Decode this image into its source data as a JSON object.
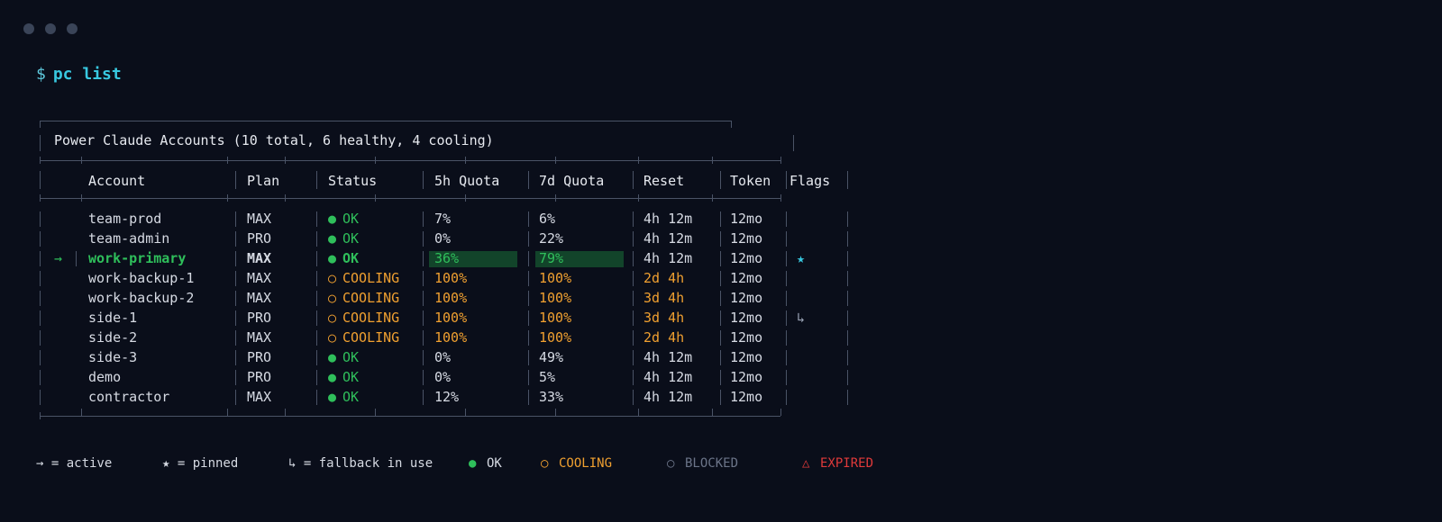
{
  "window": {
    "controls": [
      "close",
      "minimize",
      "maximize"
    ]
  },
  "prompt": {
    "sign": "$",
    "command": "pc list"
  },
  "table": {
    "title": "Power Claude Accounts (10 total, 6 healthy, 4 cooling)",
    "headers": {
      "account": "Account",
      "plan": "Plan",
      "status": "Status",
      "q5h": "5h Quota",
      "q7d": "7d Quota",
      "reset": "Reset",
      "token": "Token",
      "flags": "Flags"
    },
    "rows": [
      {
        "marker": "",
        "account": "team-prod",
        "plan": "MAX",
        "status_icon": "●",
        "status": "OK",
        "q5h": "7%",
        "q7d": "6%",
        "reset": "4h 12m",
        "token": "12mo",
        "flag": ""
      },
      {
        "marker": "",
        "account": "team-admin",
        "plan": "PRO",
        "status_icon": "●",
        "status": "OK",
        "q5h": "0%",
        "q7d": "22%",
        "reset": "4h 12m",
        "token": "12mo",
        "flag": ""
      },
      {
        "marker": "→",
        "account": "work-primary",
        "plan": "MAX",
        "status_icon": "●",
        "status": "OK",
        "q5h": "36%",
        "q7d": "79%",
        "reset": "4h 12m",
        "token": "12mo",
        "flag": "★"
      },
      {
        "marker": "",
        "account": "work-backup-1",
        "plan": "MAX",
        "status_icon": "○",
        "status": "COOLING",
        "q5h": "100%",
        "q7d": "100%",
        "reset": "2d 4h",
        "token": "12mo",
        "flag": ""
      },
      {
        "marker": "",
        "account": "work-backup-2",
        "plan": "MAX",
        "status_icon": "○",
        "status": "COOLING",
        "q5h": "100%",
        "q7d": "100%",
        "reset": "3d 4h",
        "token": "12mo",
        "flag": ""
      },
      {
        "marker": "",
        "account": "side-1",
        "plan": "PRO",
        "status_icon": "○",
        "status": "COOLING",
        "q5h": "100%",
        "q7d": "100%",
        "reset": "3d 4h",
        "token": "12mo",
        "flag": "↳"
      },
      {
        "marker": "",
        "account": "side-2",
        "plan": "MAX",
        "status_icon": "○",
        "status": "COOLING",
        "q5h": "100%",
        "q7d": "100%",
        "reset": "2d 4h",
        "token": "12mo",
        "flag": ""
      },
      {
        "marker": "",
        "account": "side-3",
        "plan": "PRO",
        "status_icon": "●",
        "status": "OK",
        "q5h": "0%",
        "q7d": "49%",
        "reset": "4h 12m",
        "token": "12mo",
        "flag": ""
      },
      {
        "marker": "",
        "account": "demo",
        "plan": "PRO",
        "status_icon": "●",
        "status": "OK",
        "q5h": "0%",
        "q7d": "5%",
        "reset": "4h 12m",
        "token": "12mo",
        "flag": ""
      },
      {
        "marker": "",
        "account": "contractor",
        "plan": "MAX",
        "status_icon": "●",
        "status": "OK",
        "q5h": "12%",
        "q7d": "33%",
        "reset": "4h 12m",
        "token": "12mo",
        "flag": ""
      }
    ],
    "active_bars": {
      "q5h_fraction": 0.36,
      "q7d_fraction": 0.79
    }
  },
  "legend": {
    "active": "→ = active",
    "pinned": "★ = pinned",
    "fallback": "↳ = fallback in use",
    "ok_icon": "●",
    "ok": "OK",
    "cooling_icon": "○",
    "cooling": "COOLING",
    "blocked_icon": "○",
    "blocked": "BLOCKED",
    "expired_icon": "△",
    "expired": "EXPIRED"
  },
  "colors": {
    "background": "#0a0e1a",
    "ok": "#2fbf5b",
    "cooling": "#f0a030",
    "blocked": "#6b7488",
    "expired": "#e03a3a",
    "accent": "#38c8e0",
    "pin": "#38c8e0"
  }
}
